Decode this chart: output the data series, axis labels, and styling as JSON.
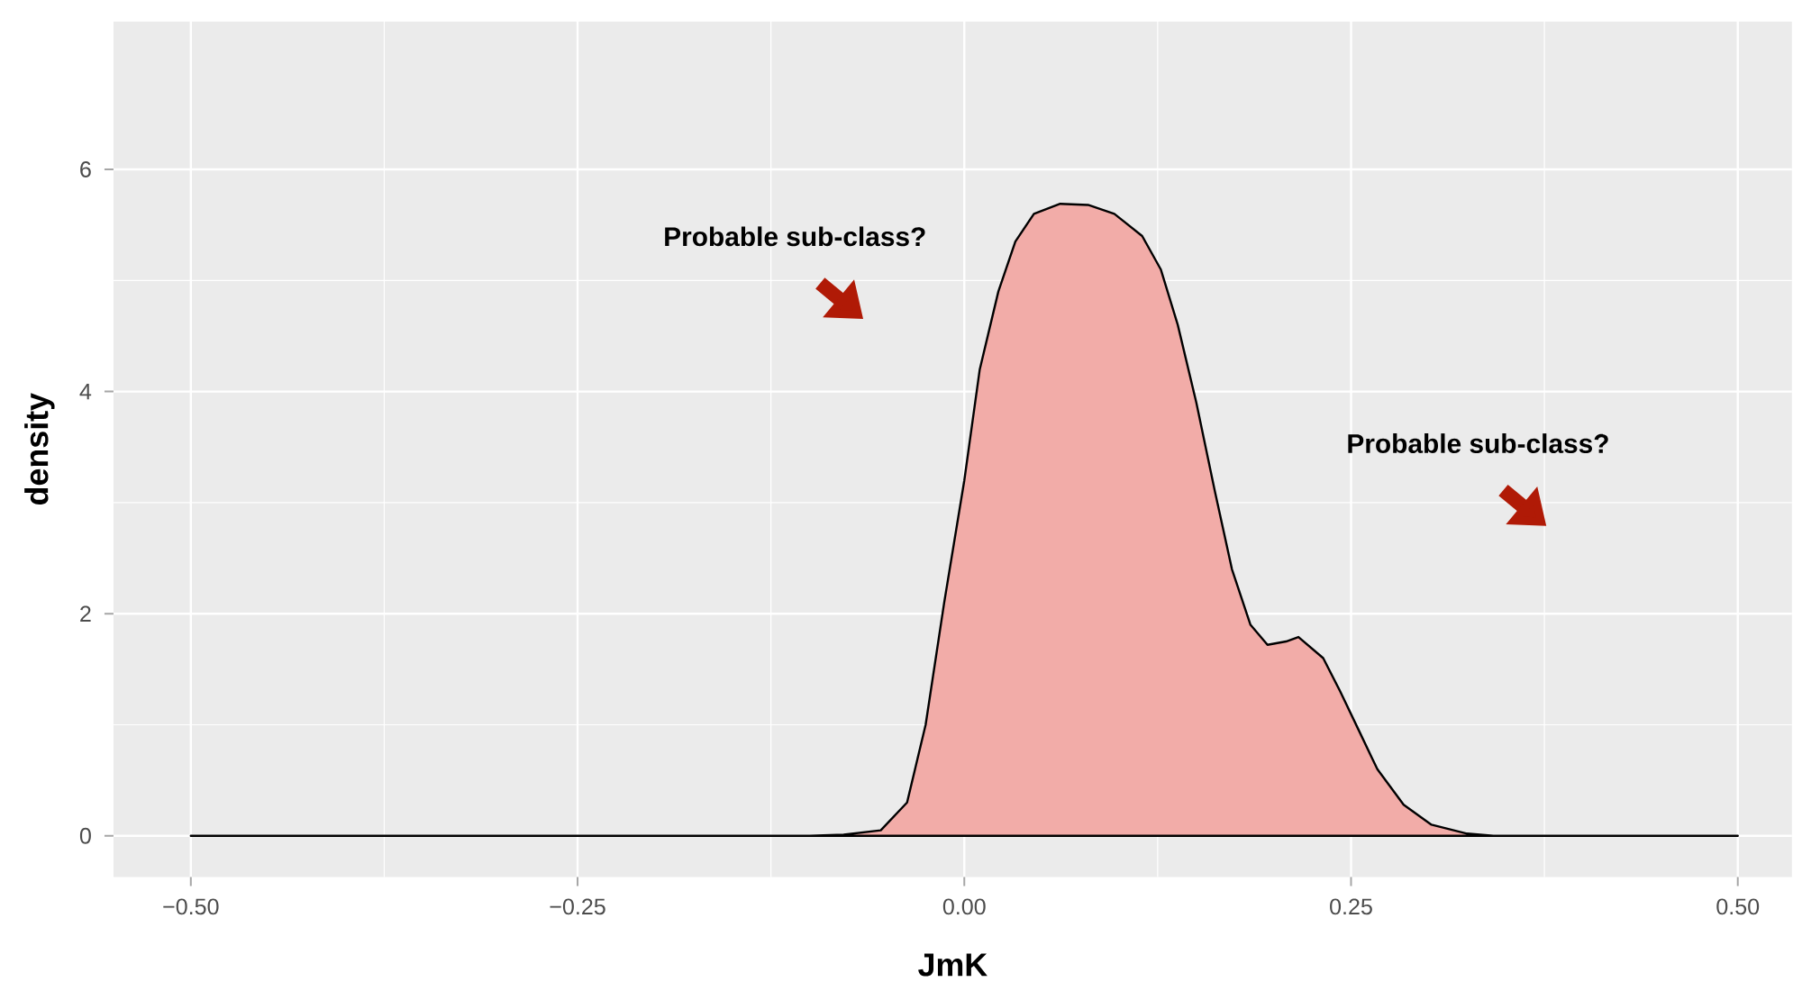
{
  "chart_data": {
    "type": "area",
    "xlabel": "JmK",
    "ylabel": "density",
    "x": [
      -0.5,
      -0.3,
      -0.15,
      -0.1,
      -0.078,
      -0.054,
      -0.037,
      -0.025,
      -0.013,
      0,
      0.01,
      0.022,
      0.033,
      0.045,
      0.062,
      0.08,
      0.097,
      0.115,
      0.127,
      0.138,
      0.15,
      0.162,
      0.173,
      0.185,
      0.196,
      0.208,
      0.216,
      0.232,
      0.243,
      0.255,
      0.267,
      0.284,
      0.302,
      0.325,
      0.342,
      0.4,
      0.5
    ],
    "series": [
      {
        "color": "#f2aca8",
        "values": [
          0,
          0,
          0,
          0,
          0.01,
          0.05,
          0.3,
          1.0,
          2.1,
          3.2,
          4.2,
          4.9,
          5.35,
          5.6,
          5.69,
          5.68,
          5.6,
          5.4,
          5.1,
          4.6,
          3.9,
          3.1,
          2.4,
          1.9,
          1.72,
          1.75,
          1.79,
          1.6,
          1.3,
          0.95,
          0.6,
          0.28,
          0.1,
          0.02,
          0,
          0,
          0
        ]
      }
    ],
    "xlim": [
      -0.55,
      0.535
    ],
    "ylim": [
      -0.37,
      7.33
    ],
    "xticks": [
      {
        "value": -0.5,
        "label": "−0.50"
      },
      {
        "value": -0.25,
        "label": "−0.25"
      },
      {
        "value": 0,
        "label": "0.00"
      },
      {
        "value": 0.25,
        "label": "0.25"
      },
      {
        "value": 0.5,
        "label": "0.50"
      }
    ],
    "yticks": [
      0,
      2,
      4,
      6
    ],
    "grid": true,
    "annotations": [
      "Probable sub-class?",
      "Probable sub-class?"
    ]
  }
}
